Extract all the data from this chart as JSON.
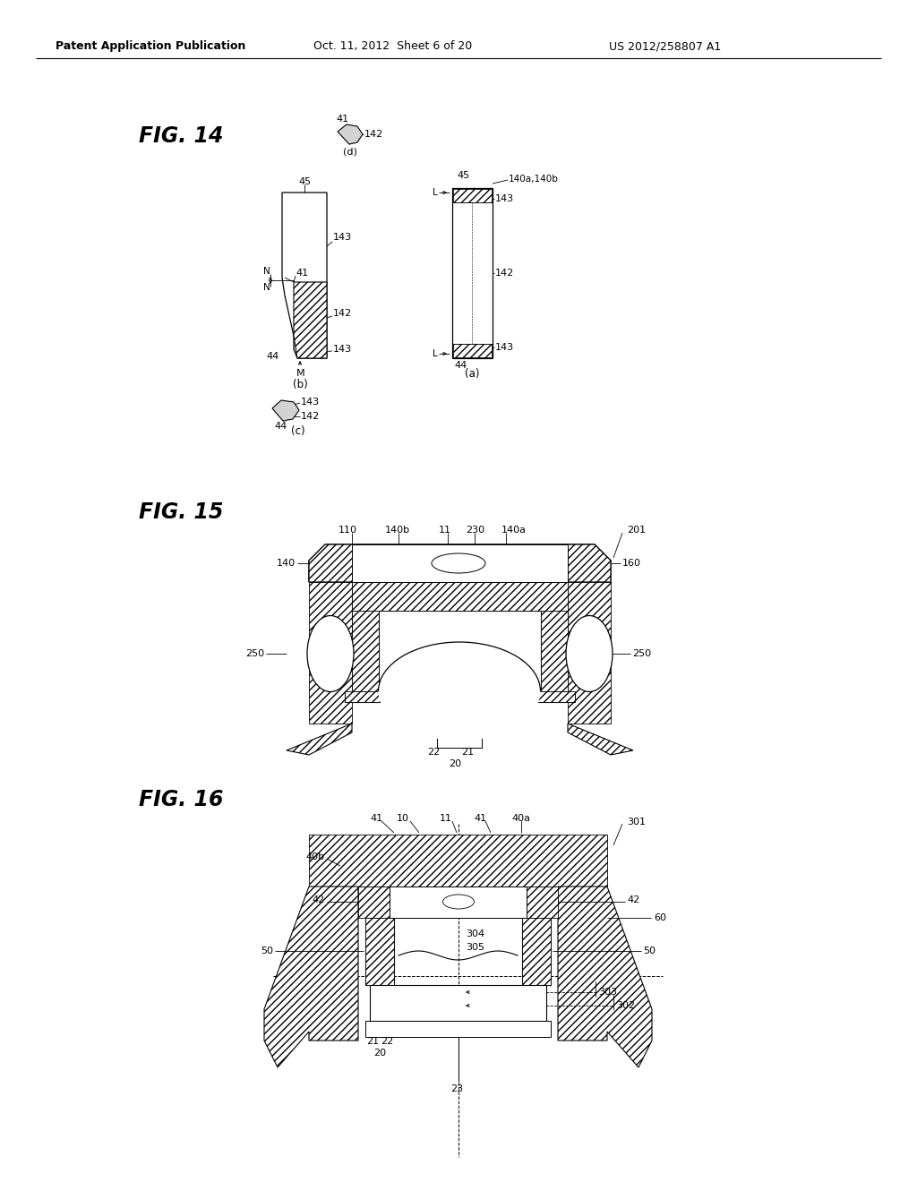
{
  "bg_color": "#ffffff",
  "header_left": "Patent Application Publication",
  "header_mid": "Oct. 11, 2012  Sheet 6 of 20",
  "header_right": "US 2012/258807 A1",
  "fig14_label": "FIG. 14",
  "fig15_label": "FIG. 15",
  "fig16_label": "FIG. 16"
}
